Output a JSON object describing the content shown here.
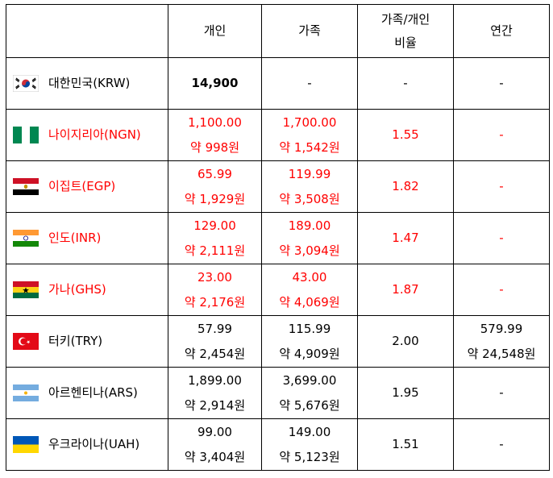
{
  "header": {
    "col0": "",
    "personal": "개인",
    "family": "가족",
    "ratio_line1": "가족/개인",
    "ratio_line2": "비율",
    "annual": "연간"
  },
  "rows": [
    {
      "country": "대한민국(KRW)",
      "flag": "korea-flag-icon",
      "personal": "14,900",
      "personal_krw": "",
      "family": "-",
      "family_krw": "",
      "ratio": "-",
      "annual": "-",
      "annual_krw": ""
    },
    {
      "country": "나이지리아(NGN)",
      "flag": "nigeria-flag-icon",
      "personal": "1,100.00",
      "personal_krw": "약 998원",
      "family": "1,700.00",
      "family_krw": "약 1,542원",
      "ratio": "1.55",
      "annual": "-",
      "annual_krw": ""
    },
    {
      "country": "이집트(EGP)",
      "flag": "egypt-flag-icon",
      "personal": "65.99",
      "personal_krw": "약 1,929원",
      "family": "119.99",
      "family_krw": "약 3,508원",
      "ratio": "1.82",
      "annual": "-",
      "annual_krw": ""
    },
    {
      "country": "인도(INR)",
      "flag": "india-flag-icon",
      "personal": "129.00",
      "personal_krw": "약 2,111원",
      "family": "189.00",
      "family_krw": "약 3,094원",
      "ratio": "1.47",
      "annual": "-",
      "annual_krw": ""
    },
    {
      "country": "가나(GHS)",
      "flag": "ghana-flag-icon",
      "personal": "23.00",
      "personal_krw": "약 2,176원",
      "family": "43.00",
      "family_krw": "약 4,069원",
      "ratio": "1.87",
      "annual": "-",
      "annual_krw": ""
    },
    {
      "country": "터키(TRY)",
      "flag": "turkey-flag-icon",
      "personal": "57.99",
      "personal_krw": "약 2,454원",
      "family": "115.99",
      "family_krw": "약 4,909원",
      "ratio": "2.00",
      "annual": "579.99",
      "annual_krw": "약 24,548원"
    },
    {
      "country": "아르헨티나(ARS)",
      "flag": "argentina-flag-icon",
      "personal": "1,899.00",
      "personal_krw": "약 2,914원",
      "family": "3,699.00",
      "family_krw": "약 5,676원",
      "ratio": "1.95",
      "annual": "-",
      "annual_krw": ""
    },
    {
      "country": "우크라이나(UAH)",
      "flag": "ukraine-flag-icon",
      "personal": "99.00",
      "personal_krw": "약 3,404원",
      "family": "149.00",
      "family_krw": "약 5,123원",
      "ratio": "1.51",
      "annual": "-",
      "annual_krw": ""
    }
  ],
  "colors": {
    "highlight": "#ff0000",
    "text": "#000000",
    "border": "#000000"
  }
}
